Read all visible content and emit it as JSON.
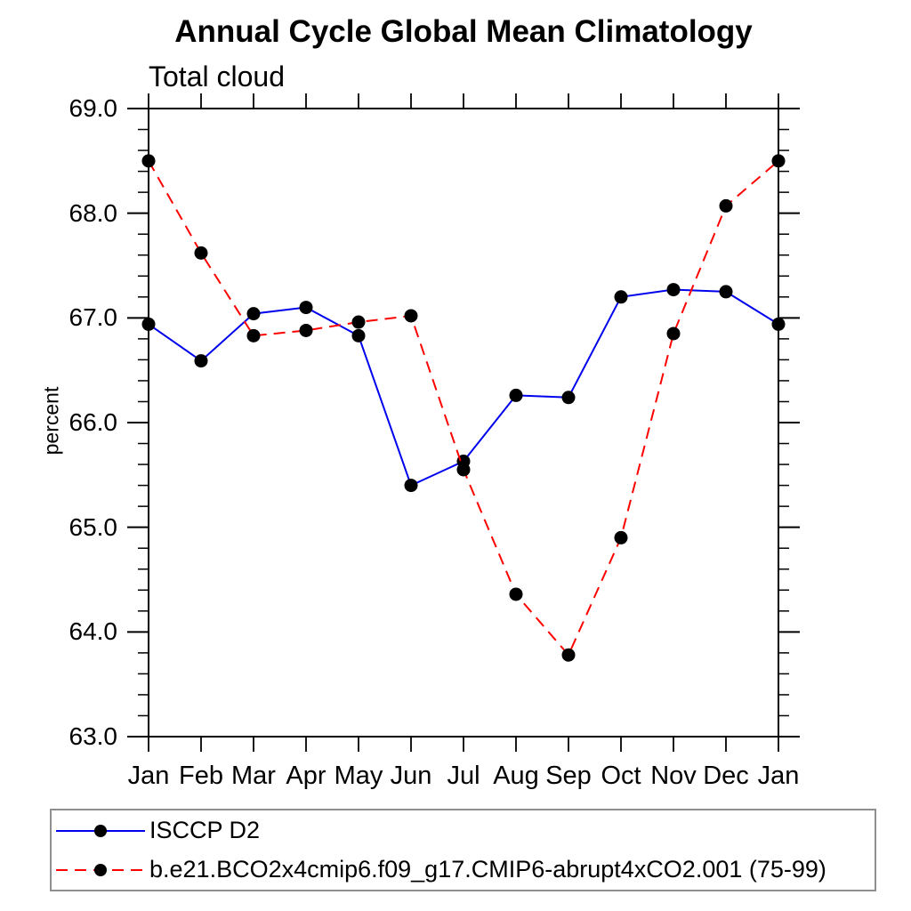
{
  "chart_data": {
    "type": "line",
    "title": "Annual Cycle Global Mean Climatology",
    "subtitle": "Total cloud",
    "ylabel": "percent",
    "xlabel": "",
    "x_categories": [
      "Jan",
      "Feb",
      "Mar",
      "Apr",
      "May",
      "Jun",
      "Jul",
      "Aug",
      "Sep",
      "Oct",
      "Nov",
      "Dec",
      "Jan"
    ],
    "ylim": [
      63.0,
      69.0
    ],
    "y_ticks_major": [
      63.0,
      64.0,
      65.0,
      66.0,
      67.0,
      68.0,
      69.0
    ],
    "y_tick_labels": [
      "63.0",
      "64.0",
      "65.0",
      "66.0",
      "67.0",
      "68.0",
      "69.0"
    ],
    "y_minor_step": 0.2,
    "grid": "off",
    "legend_position": "bottom-left-boxed",
    "frame": "full-box-outward-ticks",
    "marker_color": "#000000",
    "axis_color": "#000000",
    "series": [
      {
        "name": "ISCCP D2",
        "color": "#0000ee",
        "line_style": "solid",
        "marker": "filled-circle",
        "values": [
          66.94,
          66.59,
          67.04,
          67.1,
          66.83,
          65.4,
          65.63,
          66.26,
          66.24,
          67.2,
          67.27,
          67.25,
          66.94
        ]
      },
      {
        "name": "b.e21.BCO2x4cmip6.f09_g17.CMIP6-abrupt4xCO2.001 (75-99)",
        "color": "#ff0000",
        "line_style": "dashed",
        "marker": "filled-circle",
        "values": [
          68.5,
          67.62,
          66.83,
          66.88,
          66.96,
          67.02,
          65.55,
          64.36,
          63.78,
          64.9,
          66.85,
          68.07,
          68.5
        ]
      }
    ]
  }
}
